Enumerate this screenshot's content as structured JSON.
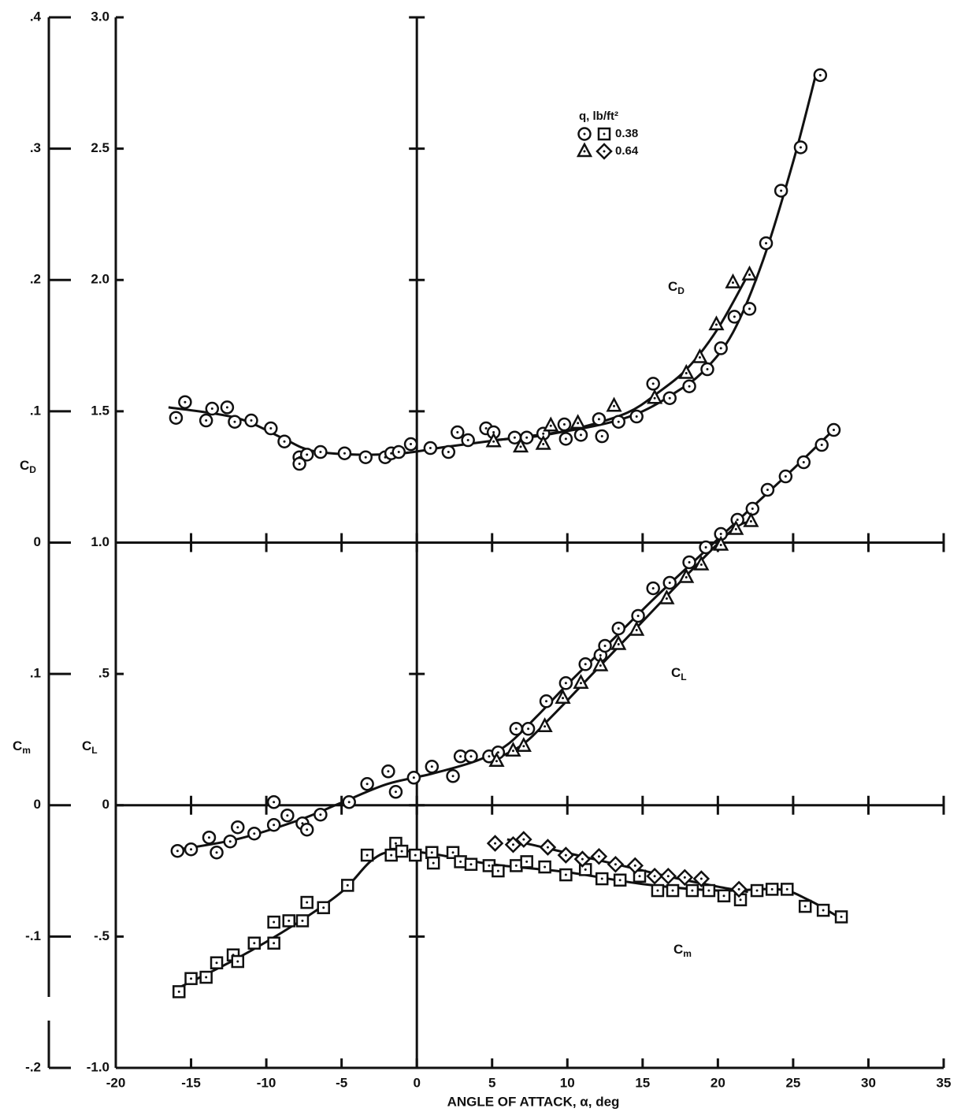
{
  "chart_data": {
    "type": "scatter",
    "xlabel": "ANGLE OF ATTACK, α, deg",
    "xlim": [
      -20,
      35
    ],
    "xticks": [
      -20,
      -15,
      -10,
      -5,
      0,
      5,
      10,
      15,
      20,
      25,
      30,
      35
    ],
    "ylim": [
      -1,
      3
    ],
    "yticks": [
      {
        "value": -1,
        "label": "-1.0"
      },
      {
        "value": -0.5,
        "label": "-.5"
      },
      0,
      {
        "value": 0.5,
        "label": ".5"
      },
      {
        "value": 1,
        "label": "1.0"
      },
      1.5,
      {
        "value": 2,
        "label": "2.0"
      },
      2.5,
      {
        "value": 3,
        "label": "3.0"
      }
    ],
    "cd_lim": [
      0,
      0.4
    ],
    "cd_ticks": [
      0,
      {
        "value": 0.1,
        "label": ".1"
      },
      {
        "value": 0.2,
        "label": ".2"
      },
      {
        "value": 0.3,
        "label": ".3"
      },
      {
        "value": 0.4,
        "label": ".4"
      }
    ],
    "cm_lim": [
      -0.2,
      0.1
    ],
    "cm_ticks": [
      {
        "value": -0.2,
        "label": "-.2"
      },
      {
        "value": -0.1,
        "label": "-.1"
      },
      0,
      {
        "value": 0.1,
        "label": ".1"
      }
    ],
    "axis_labels": {
      "cd": {
        "base": "C",
        "sub": "D"
      },
      "cm": {
        "base": "C",
        "sub": "m"
      },
      "cl": {
        "base": "C",
        "sub": "L"
      }
    },
    "curve_labels": [
      {
        "base": "C",
        "sub": "D"
      },
      {
        "base": "C",
        "sub": "L"
      },
      {
        "base": "C",
        "sub": "m"
      }
    ],
    "legend_title": "q, lb/ft²",
    "legend": [
      {
        "label": "0.38",
        "markers": [
          "circle",
          "square"
        ]
      },
      {
        "label": "0.64",
        "markers": [
          "triangle",
          "diamond"
        ]
      }
    ],
    "series": [
      {
        "axis": "cd",
        "marker": "circle",
        "x": [
          -16,
          -15.4,
          -14,
          -13.6,
          -12.6,
          -12.1,
          -11,
          -9.7,
          -8.8,
          -7.8,
          -7.8,
          -7.3,
          -6.4,
          -4.8,
          -3.4,
          -2.1,
          -1.7,
          -1.2,
          -0.4,
          0.9,
          2.1,
          2.7,
          3.4,
          4.6,
          5.1,
          6.5,
          7.3,
          8.4,
          9.8,
          9.9,
          10.9,
          12.1,
          12.3,
          13.4,
          14.6,
          15.7,
          16.8,
          18.1,
          19.3,
          20.2,
          21.1,
          22.1,
          23.2,
          24.2,
          25.5,
          26.8
        ],
        "values": [
          0.095,
          0.107,
          0.093,
          0.102,
          0.103,
          0.092,
          0.093,
          0.087,
          0.077,
          0.065,
          0.06,
          0.067,
          0.069,
          0.068,
          0.065,
          0.065,
          0.068,
          0.069,
          0.075,
          0.072,
          0.069,
          0.084,
          0.078,
          0.087,
          0.084,
          0.08,
          0.08,
          0.083,
          0.09,
          0.079,
          0.082,
          0.094,
          0.081,
          0.092,
          0.096,
          0.121,
          0.11,
          0.119,
          0.132,
          0.148,
          0.172,
          0.178,
          0.228,
          0.268,
          0.301,
          0.356
        ]
      },
      {
        "axis": "cd",
        "marker": "triangle",
        "x": [
          5.1,
          6.9,
          8.4,
          8.9,
          10.7,
          13.1,
          15.8,
          17.9,
          18.8,
          19.9,
          21,
          22.1
        ],
        "values": [
          0.077,
          0.073,
          0.075,
          0.089,
          0.091,
          0.104,
          0.11,
          0.129,
          0.141,
          0.166,
          0.198,
          0.204
        ]
      },
      {
        "axis": "cl",
        "marker": "circle",
        "x": [
          -15.9,
          -15,
          -13.8,
          -13.3,
          -12.4,
          -11.9,
          -10.8,
          -9.5,
          -9.5,
          -8.6,
          -7.6,
          -7.3,
          -6.4,
          -4.5,
          -3.3,
          -1.9,
          -1.4,
          -0.2,
          1,
          2.4,
          2.9,
          3.6,
          4.8,
          5.4,
          6.6,
          7.4,
          8.6,
          9.9,
          11.2,
          12.2,
          12.5,
          13.4,
          14.7,
          15.7,
          16.8,
          18.1,
          19.2,
          20.2,
          21.3,
          22.3,
          23.3,
          24.5,
          25.7,
          26.9,
          27.7
        ],
        "values": [
          -0.174,
          -0.168,
          -0.123,
          -0.18,
          -0.138,
          -0.084,
          -0.108,
          -0.075,
          0.012,
          -0.039,
          -0.069,
          -0.093,
          -0.036,
          0.012,
          0.081,
          0.129,
          0.051,
          0.105,
          0.147,
          0.111,
          0.186,
          0.186,
          0.186,
          0.201,
          0.291,
          0.291,
          0.396,
          0.465,
          0.537,
          0.571,
          0.607,
          0.673,
          0.721,
          0.826,
          0.847,
          0.925,
          0.982,
          1.033,
          1.087,
          1.129,
          1.201,
          1.252,
          1.306,
          1.372,
          1.429
        ]
      },
      {
        "axis": "cl",
        "marker": "triangle",
        "x": [
          5.3,
          6.4,
          7.1,
          8.5,
          9.7,
          10.9,
          12.2,
          13.4,
          14.6,
          16.6,
          17.9,
          18.9,
          20.2,
          21.2,
          22.2
        ],
        "values": [
          0.168,
          0.207,
          0.225,
          0.3,
          0.408,
          0.465,
          0.532,
          0.613,
          0.667,
          0.787,
          0.868,
          0.916,
          0.991,
          1.051,
          1.081
        ]
      },
      {
        "axis": "cm",
        "marker": "square",
        "x": [
          -15.8,
          -15,
          -14,
          -13.3,
          -12.2,
          -11.9,
          -10.8,
          -9.5,
          -9.5,
          -8.5,
          -7.6,
          -7.3,
          -6.2,
          -4.6,
          -3.3,
          -1.7,
          -1.4,
          -1,
          -0.1,
          1,
          1.1,
          2.4,
          2.9,
          3.6,
          4.8,
          5.4,
          6.6,
          7.3,
          8.5,
          9.9,
          11.2,
          12.3,
          13.5,
          14.8,
          16,
          17,
          18.3,
          19.4,
          20.4,
          21.5,
          22.6,
          23.6,
          24.6,
          25.8,
          27,
          28.2
        ],
        "values": [
          -0.142,
          -0.132,
          -0.131,
          -0.12,
          -0.114,
          -0.119,
          -0.105,
          -0.105,
          -0.089,
          -0.088,
          -0.088,
          -0.074,
          -0.078,
          -0.061,
          -0.038,
          -0.038,
          -0.029,
          -0.035,
          -0.038,
          -0.036,
          -0.044,
          -0.036,
          -0.043,
          -0.045,
          -0.046,
          -0.05,
          -0.046,
          -0.043,
          -0.047,
          -0.053,
          -0.049,
          -0.056,
          -0.057,
          -0.054,
          -0.065,
          -0.065,
          -0.065,
          -0.065,
          -0.069,
          -0.072,
          -0.065,
          -0.064,
          -0.064,
          -0.077,
          -0.08,
          -0.085
        ]
      },
      {
        "axis": "cm",
        "marker": "diamond",
        "x": [
          5.2,
          6.4,
          7.1,
          8.7,
          9.9,
          11,
          12.1,
          13.2,
          14.5,
          15.8,
          16.7,
          17.8,
          18.9,
          21.4
        ],
        "values": [
          -0.029,
          -0.03,
          -0.026,
          -0.032,
          -0.038,
          -0.041,
          -0.039,
          -0.045,
          -0.046,
          -0.054,
          -0.054,
          -0.055,
          -0.056,
          -0.064
        ]
      }
    ],
    "curves": [
      {
        "axis": "cd",
        "x": [
          -16.5,
          -12,
          -9,
          -7,
          -4,
          -1,
          2,
          6,
          10,
          13,
          15,
          17,
          19,
          21,
          23,
          25,
          26.5
        ],
        "values": [
          0.103,
          0.095,
          0.08,
          0.07,
          0.067,
          0.068,
          0.073,
          0.079,
          0.085,
          0.092,
          0.1,
          0.113,
          0.13,
          0.16,
          0.215,
          0.29,
          0.356
        ]
      },
      {
        "axis": "cd",
        "x": [
          5,
          8,
          11,
          14,
          16,
          18,
          20,
          22
        ],
        "values": [
          0.078,
          0.081,
          0.088,
          0.099,
          0.114,
          0.133,
          0.163,
          0.204
        ]
      },
      {
        "axis": "cl",
        "x": [
          -16,
          -12,
          -8,
          -5,
          -2,
          1,
          4,
          6,
          8,
          10,
          13,
          16,
          19,
          22,
          25,
          27.7
        ],
        "values": [
          -0.17,
          -0.13,
          -0.06,
          0.01,
          0.08,
          0.12,
          0.17,
          0.23,
          0.34,
          0.46,
          0.63,
          0.8,
          0.96,
          1.12,
          1.28,
          1.43
        ]
      },
      {
        "axis": "cl",
        "x": [
          5,
          7,
          9,
          12,
          15,
          18,
          21,
          22.2
        ],
        "values": [
          0.17,
          0.23,
          0.34,
          0.52,
          0.7,
          0.88,
          1.05,
          1.08
        ]
      },
      {
        "axis": "cm",
        "x": [
          -16,
          -12,
          -8,
          -5,
          -3,
          -1.5,
          1,
          5,
          10,
          15,
          20,
          24,
          26,
          28
        ],
        "values": [
          -0.14,
          -0.117,
          -0.09,
          -0.066,
          -0.042,
          -0.035,
          -0.037,
          -0.045,
          -0.051,
          -0.06,
          -0.065,
          -0.064,
          -0.072,
          -0.085
        ]
      },
      {
        "axis": "cm",
        "x": [
          6,
          8,
          11,
          14,
          17,
          20,
          22
        ],
        "values": [
          -0.026,
          -0.031,
          -0.039,
          -0.047,
          -0.055,
          -0.062,
          -0.066
        ]
      }
    ]
  }
}
